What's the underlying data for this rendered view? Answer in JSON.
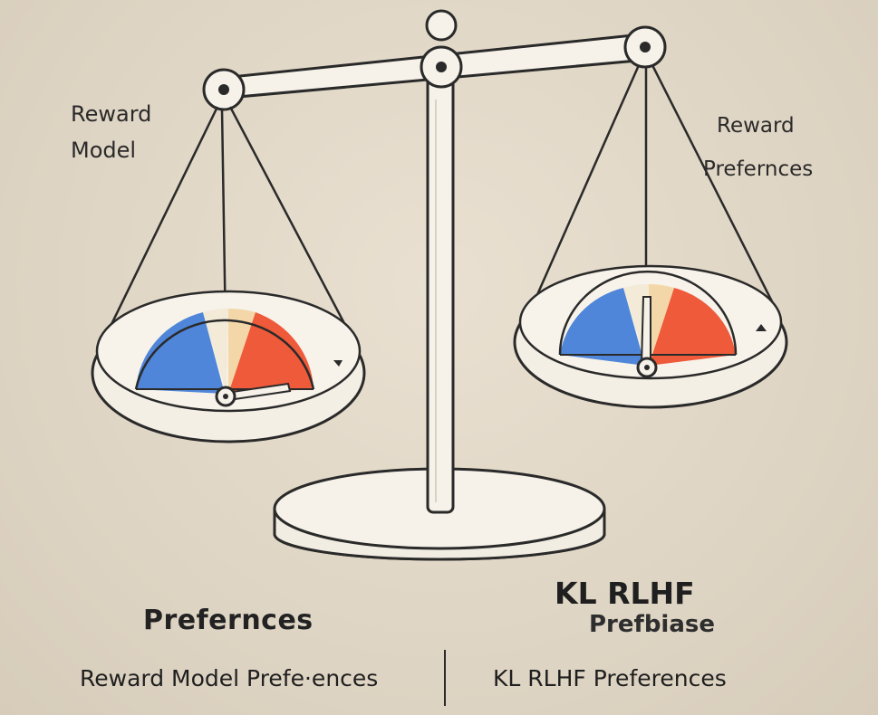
{
  "labels": {
    "left_line1": "Reward",
    "left_line2": "Model",
    "right_line1": "Reward",
    "right_line2": "Prefernces",
    "left_caption": "Prefernces",
    "right_caption_main": "KL RLHF",
    "right_caption_sub": "Prefbiase",
    "bottom_left": "Reward Model Prefe·ences",
    "bottom_right": "KL RLHF Preferences"
  },
  "colors": {
    "background": "#e2d8c8",
    "outline": "#2a2a2a",
    "scale_fill": "#f4efe4",
    "gauge_blue": "#4f86d9",
    "gauge_cream": "#f3ead8",
    "gauge_peach": "#f4d7a9",
    "gauge_red": "#ee5a3a"
  },
  "gauges": {
    "left_needle_direction": "right",
    "right_needle_direction": "up"
  }
}
